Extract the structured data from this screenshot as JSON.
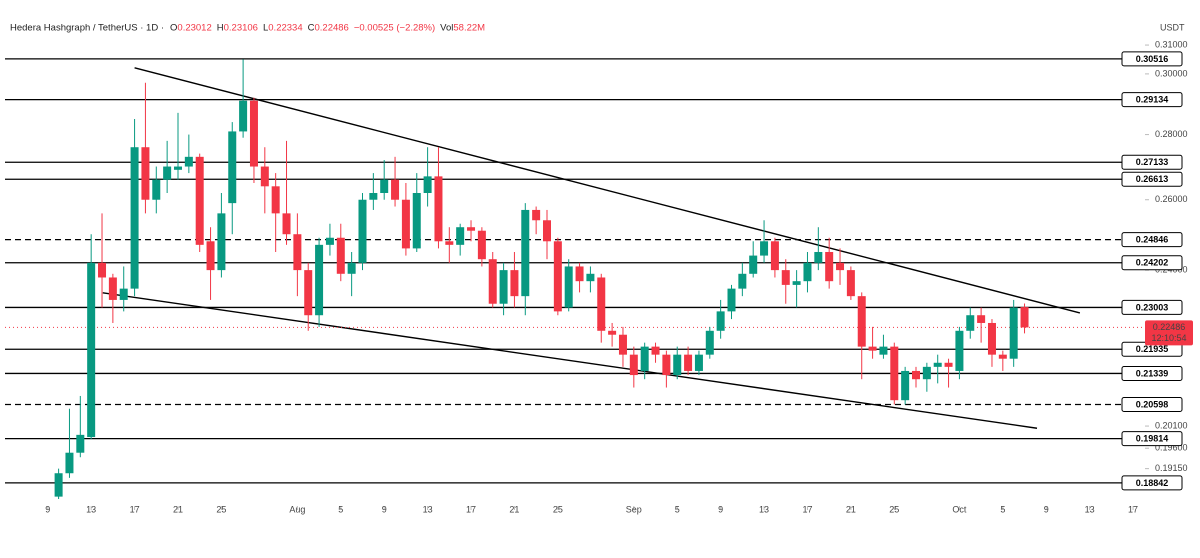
{
  "chart_data": {
    "type": "candlestick",
    "header": {
      "symbol": "Hedera Hashgraph / TetherUS · 1D ·",
      "stats": [
        {
          "key": "O",
          "value": "0.23012"
        },
        {
          "key": "H",
          "value": "0.23106"
        },
        {
          "key": "L",
          "value": "0.22334"
        },
        {
          "key": "C",
          "value": "0.22486"
        }
      ],
      "change": "−0.00525 (−2.28%)",
      "volume_key": "Vol",
      "volume": "58.22M"
    },
    "currency": "USDT",
    "log_scale": true,
    "up_color": "#089981",
    "down_color": "#f23645",
    "xlim": [
      -4.4,
      101.1
    ],
    "xticks": [
      {
        "value": 0,
        "label": "9"
      },
      {
        "value": 4,
        "label": "13"
      },
      {
        "value": 8,
        "label": "17"
      },
      {
        "value": 12,
        "label": "21"
      },
      {
        "value": 16,
        "label": "25"
      },
      {
        "value": 23,
        "label": "Aug"
      },
      {
        "value": 27,
        "label": "5"
      },
      {
        "value": 31,
        "label": "9"
      },
      {
        "value": 35,
        "label": "13"
      },
      {
        "value": 39,
        "label": "17"
      },
      {
        "value": 43,
        "label": "21"
      },
      {
        "value": 47,
        "label": "25"
      },
      {
        "value": 54,
        "label": "Sep"
      },
      {
        "value": 58,
        "label": "5"
      },
      {
        "value": 62,
        "label": "9"
      },
      {
        "value": 66,
        "label": "13"
      },
      {
        "value": 70,
        "label": "17"
      },
      {
        "value": 74,
        "label": "21"
      },
      {
        "value": 78,
        "label": "25"
      },
      {
        "value": 84,
        "label": "Oct"
      },
      {
        "value": 88,
        "label": "5"
      },
      {
        "value": 92,
        "label": "9"
      },
      {
        "value": 96,
        "label": "13"
      },
      {
        "value": 100,
        "label": "17"
      }
    ],
    "ylim": [
      0.1827,
      0.3263
    ],
    "yticks": [
      {
        "value": 0.31,
        "label": "0.31000"
      },
      {
        "value": 0.3,
        "label": "0.30000"
      },
      {
        "value": 0.28,
        "label": "0.28000"
      },
      {
        "value": 0.26,
        "label": "0.26000"
      },
      {
        "value": 0.24,
        "label": "0.24000"
      },
      {
        "value": 0.201,
        "label": "0.20100"
      },
      {
        "value": 0.196,
        "label": "0.19600"
      },
      {
        "value": 0.1915,
        "label": "0.19150"
      }
    ],
    "levels": [
      {
        "value": 0.30516,
        "dashed": false
      },
      {
        "value": 0.29134,
        "dashed": false
      },
      {
        "value": 0.27133,
        "dashed": false
      },
      {
        "value": 0.26613,
        "dashed": false
      },
      {
        "value": 0.24846,
        "dashed": true
      },
      {
        "value": 0.24202,
        "dashed": false
      },
      {
        "value": 0.23003,
        "dashed": false
      },
      {
        "value": 0.21935,
        "dashed": false
      },
      {
        "value": 0.21339,
        "dashed": false
      },
      {
        "value": 0.20598,
        "dashed": true
      },
      {
        "value": 0.19814,
        "dashed": false
      },
      {
        "value": 0.18842,
        "dashed": false
      }
    ],
    "trendlines": [
      {
        "x": [
          8.0,
          95.1
        ],
        "y": [
          0.3021,
          0.2286
        ]
      },
      {
        "x": [
          5.07,
          91.15
        ],
        "y": [
          0.2339,
          0.2005
        ]
      }
    ],
    "last_price": {
      "value": 0.22486,
      "countdown": "12:10:54"
    },
    "x": [
      1,
      2,
      3,
      4,
      5,
      6,
      7,
      8,
      9,
      10,
      11,
      12,
      13,
      14,
      15,
      16,
      17,
      18,
      19,
      20,
      21,
      22,
      23,
      24,
      25,
      26,
      27,
      28,
      29,
      30,
      31,
      32,
      33,
      34,
      35,
      36,
      37,
      38,
      39,
      40,
      41,
      42,
      43,
      44,
      45,
      46,
      47,
      48,
      49,
      50,
      51,
      52,
      53,
      54,
      55,
      56,
      57,
      58,
      59,
      60,
      61,
      62,
      63,
      64,
      65,
      66,
      67,
      68,
      69,
      70,
      71,
      72,
      73,
      74,
      75,
      76,
      77,
      78,
      79,
      80,
      81,
      82,
      83,
      84,
      85,
      86,
      87,
      88,
      89,
      90
    ],
    "open": [
      0.1855,
      0.1905,
      0.195,
      0.1985,
      0.242,
      0.238,
      0.232,
      0.235,
      0.276,
      0.26,
      0.266,
      0.269,
      0.27,
      0.273,
      0.248,
      0.24,
      0.259,
      0.281,
      0.291,
      0.27,
      0.264,
      0.256,
      0.25,
      0.24,
      0.228,
      0.247,
      0.249,
      0.239,
      0.242,
      0.26,
      0.262,
      0.266,
      0.26,
      0.246,
      0.262,
      0.267,
      0.248,
      0.247,
      0.252,
      0.251,
      0.243,
      0.231,
      0.24,
      0.233,
      0.257,
      0.254,
      0.248,
      0.23,
      0.241,
      0.237,
      0.238,
      0.224,
      0.223,
      0.218,
      0.214,
      0.22,
      0.218,
      0.213,
      0.218,
      0.214,
      0.218,
      0.224,
      0.229,
      0.235,
      0.239,
      0.244,
      0.248,
      0.24,
      0.236,
      0.237,
      0.242,
      0.245,
      0.242,
      0.24,
      0.233,
      0.22,
      0.218,
      0.22,
      0.207,
      0.214,
      0.212,
      0.215,
      0.216,
      0.214,
      0.224,
      0.228,
      0.226,
      0.218,
      0.217,
      0.23012
    ],
    "high": [
      0.1915,
      0.205,
      0.208,
      0.25,
      0.256,
      0.239,
      0.241,
      0.285,
      0.297,
      0.27,
      0.278,
      0.287,
      0.28,
      0.274,
      0.252,
      0.262,
      0.284,
      0.305,
      0.292,
      0.276,
      0.268,
      0.278,
      0.256,
      0.242,
      0.249,
      0.253,
      0.253,
      0.245,
      0.262,
      0.268,
      0.272,
      0.273,
      0.265,
      0.268,
      0.276,
      0.276,
      0.252,
      0.253,
      0.254,
      0.252,
      0.245,
      0.242,
      0.245,
      0.259,
      0.258,
      0.257,
      0.249,
      0.243,
      0.242,
      0.241,
      0.239,
      0.226,
      0.225,
      0.22,
      0.221,
      0.221,
      0.219,
      0.22,
      0.22,
      0.219,
      0.225,
      0.232,
      0.236,
      0.242,
      0.248,
      0.254,
      0.249,
      0.243,
      0.24,
      0.245,
      0.252,
      0.249,
      0.246,
      0.241,
      0.234,
      0.225,
      0.223,
      0.221,
      0.215,
      0.215,
      0.216,
      0.218,
      0.217,
      0.225,
      0.23,
      0.23,
      0.227,
      0.219,
      0.232,
      0.23106
    ],
    "low": [
      0.185,
      0.1895,
      0.194,
      0.198,
      0.23,
      0.226,
      0.229,
      0.233,
      0.256,
      0.256,
      0.262,
      0.266,
      0.268,
      0.245,
      0.232,
      0.238,
      0.25,
      0.279,
      0.265,
      0.256,
      0.245,
      0.247,
      0.233,
      0.224,
      0.225,
      0.244,
      0.237,
      0.233,
      0.24,
      0.257,
      0.26,
      0.258,
      0.244,
      0.245,
      0.258,
      0.246,
      0.242,
      0.244,
      0.248,
      0.241,
      0.23,
      0.228,
      0.23,
      0.228,
      0.25,
      0.243,
      0.228,
      0.229,
      0.234,
      0.234,
      0.221,
      0.22,
      0.215,
      0.21,
      0.212,
      0.216,
      0.21,
      0.212,
      0.213,
      0.213,
      0.217,
      0.222,
      0.227,
      0.233,
      0.238,
      0.242,
      0.238,
      0.231,
      0.23,
      0.234,
      0.24,
      0.235,
      0.236,
      0.232,
      0.212,
      0.217,
      0.217,
      0.206,
      0.206,
      0.21,
      0.209,
      0.211,
      0.21,
      0.212,
      0.222,
      0.221,
      0.215,
      0.214,
      0.215,
      0.22334
    ],
    "close": [
      0.1905,
      0.195,
      0.199,
      0.242,
      0.238,
      0.232,
      0.235,
      0.276,
      0.26,
      0.266,
      0.27,
      0.27,
      0.273,
      0.247,
      0.24,
      0.256,
      0.281,
      0.291,
      0.27,
      0.264,
      0.256,
      0.25,
      0.24,
      0.228,
      0.247,
      0.249,
      0.239,
      0.242,
      0.26,
      0.262,
      0.266,
      0.26,
      0.246,
      0.262,
      0.267,
      0.248,
      0.247,
      0.252,
      0.251,
      0.243,
      0.231,
      0.24,
      0.233,
      0.257,
      0.254,
      0.248,
      0.229,
      0.241,
      0.237,
      0.239,
      0.224,
      0.223,
      0.218,
      0.213,
      0.22,
      0.218,
      0.213,
      0.218,
      0.214,
      0.218,
      0.224,
      0.229,
      0.235,
      0.239,
      0.244,
      0.248,
      0.24,
      0.236,
      0.237,
      0.242,
      0.245,
      0.237,
      0.24,
      0.233,
      0.22,
      0.219,
      0.22,
      0.207,
      0.214,
      0.212,
      0.215,
      0.216,
      0.215,
      0.224,
      0.228,
      0.226,
      0.218,
      0.217,
      0.23,
      0.22486
    ]
  }
}
